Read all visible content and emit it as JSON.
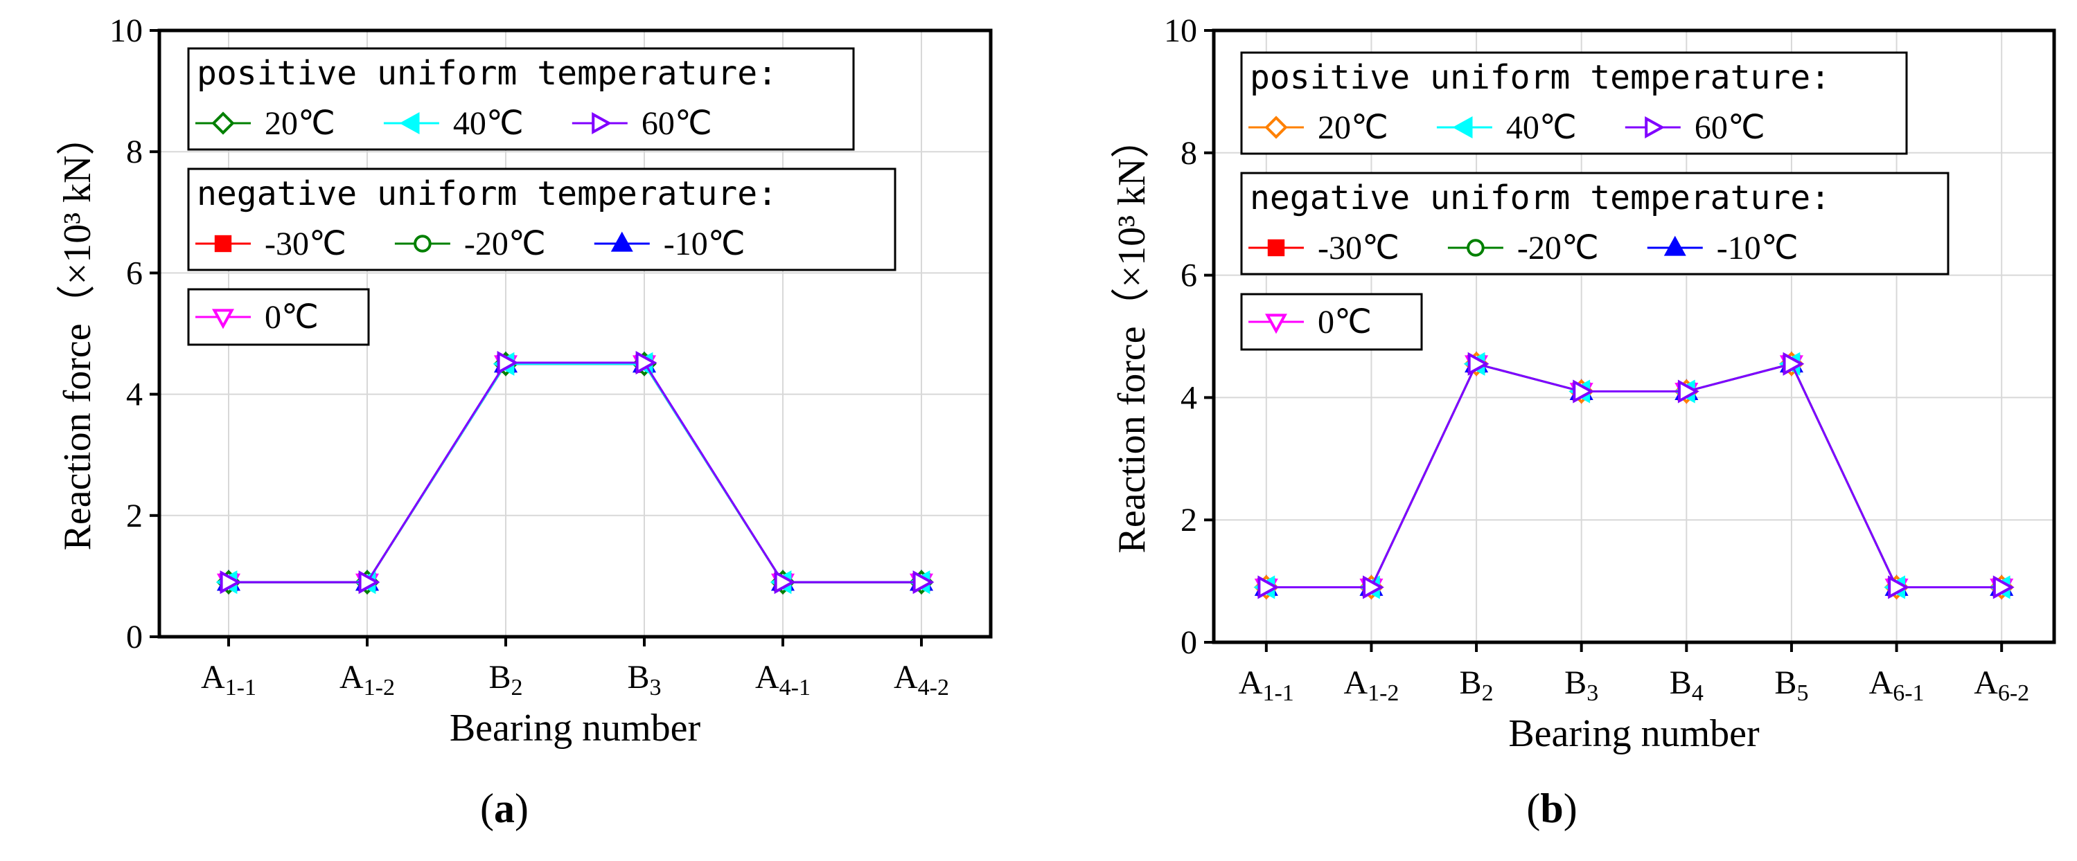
{
  "chart_data": [
    {
      "type": "line",
      "panel": "(a)",
      "caption_open": "(",
      "caption_letter": "a",
      "caption_close": ")",
      "xlabel": "Bearing number",
      "ylabel": "Reaction force（×10³ kN）",
      "ylim": [
        0,
        10
      ],
      "yticks": [
        0,
        2,
        4,
        6,
        8,
        10
      ],
      "grid": true,
      "categories": [
        {
          "main": "A",
          "sub": "1-1"
        },
        {
          "main": "A",
          "sub": "1-2"
        },
        {
          "main": "B",
          "sub": "2"
        },
        {
          "main": "B",
          "sub": "3"
        },
        {
          "main": "A",
          "sub": "4-1"
        },
        {
          "main": "A",
          "sub": "4-2"
        }
      ],
      "series": [
        {
          "name": "-30℃",
          "group": "negative",
          "color": "#ff0000",
          "marker": "square-filled",
          "values": [
            0.9,
            0.9,
            4.5,
            4.5,
            0.9,
            0.9
          ]
        },
        {
          "name": "-20℃",
          "group": "negative",
          "color": "#008000",
          "marker": "circle-open",
          "values": [
            0.9,
            0.9,
            4.5,
            4.5,
            0.9,
            0.9
          ]
        },
        {
          "name": "-10℃",
          "group": "negative",
          "color": "#0000ff",
          "marker": "triangle-up-filled",
          "values": [
            0.9,
            0.9,
            4.5,
            4.5,
            0.9,
            0.9
          ]
        },
        {
          "name": "0℃",
          "group": "zero",
          "color": "#ff00ff",
          "marker": "triangle-down-open",
          "values": [
            0.9,
            0.9,
            4.5,
            4.5,
            0.9,
            0.9
          ]
        },
        {
          "name": "20℃",
          "group": "positive",
          "color": "#008000",
          "marker": "diamond-open",
          "values": [
            0.9,
            0.9,
            4.5,
            4.5,
            0.9,
            0.9
          ]
        },
        {
          "name": "40℃",
          "group": "positive",
          "color": "#00ffff",
          "marker": "triangle-left-filled",
          "values": [
            0.9,
            0.9,
            4.5,
            4.5,
            0.9,
            0.9
          ]
        },
        {
          "name": "60℃",
          "group": "positive",
          "color": "#8000ff",
          "marker": "triangle-right-open",
          "values": [
            0.9,
            0.9,
            4.52,
            4.52,
            0.9,
            0.9
          ]
        }
      ],
      "legend": {
        "positive_title": "positive uniform temperature:",
        "negative_title": "negative uniform temperature:",
        "positive": [
          "20℃",
          "40℃",
          "60℃"
        ],
        "negative": [
          "-30℃",
          "-20℃",
          "-10℃"
        ],
        "zero": [
          "0℃"
        ],
        "placement": "top-left"
      }
    },
    {
      "type": "line",
      "panel": "(b)",
      "caption_open": "(",
      "caption_letter": "b",
      "caption_close": ")",
      "xlabel": "Bearing number",
      "ylabel": "Reaction force（×10³ kN）",
      "ylim": [
        0,
        10
      ],
      "yticks": [
        0,
        2,
        4,
        6,
        8,
        10
      ],
      "grid": true,
      "categories": [
        {
          "main": "A",
          "sub": "1-1"
        },
        {
          "main": "A",
          "sub": "1-2"
        },
        {
          "main": "B",
          "sub": "2"
        },
        {
          "main": "B",
          "sub": "3"
        },
        {
          "main": "B",
          "sub": "4"
        },
        {
          "main": "B",
          "sub": "5"
        },
        {
          "main": "A",
          "sub": "6-1"
        },
        {
          "main": "A",
          "sub": "6-2"
        }
      ],
      "series": [
        {
          "name": "-30℃",
          "group": "negative",
          "color": "#ff0000",
          "marker": "square-filled",
          "values": [
            0.9,
            0.9,
            4.55,
            4.1,
            4.1,
            4.55,
            0.9,
            0.9
          ]
        },
        {
          "name": "-20℃",
          "group": "negative",
          "color": "#008000",
          "marker": "circle-open",
          "values": [
            0.9,
            0.9,
            4.55,
            4.1,
            4.1,
            4.55,
            0.9,
            0.9
          ]
        },
        {
          "name": "-10℃",
          "group": "negative",
          "color": "#0000ff",
          "marker": "triangle-up-filled",
          "values": [
            0.9,
            0.9,
            4.55,
            4.1,
            4.1,
            4.55,
            0.9,
            0.9
          ]
        },
        {
          "name": "0℃",
          "group": "zero",
          "color": "#ff00ff",
          "marker": "triangle-down-open",
          "values": [
            0.9,
            0.9,
            4.55,
            4.1,
            4.1,
            4.55,
            0.9,
            0.9
          ]
        },
        {
          "name": "20℃",
          "group": "positive",
          "color": "#ff8000",
          "marker": "diamond-open",
          "values": [
            0.9,
            0.9,
            4.55,
            4.1,
            4.1,
            4.55,
            0.9,
            0.9
          ]
        },
        {
          "name": "40℃",
          "group": "positive",
          "color": "#00ffff",
          "marker": "triangle-left-filled",
          "values": [
            0.9,
            0.9,
            4.55,
            4.1,
            4.1,
            4.55,
            0.9,
            0.9
          ]
        },
        {
          "name": "60℃",
          "group": "positive",
          "color": "#8000ff",
          "marker": "triangle-right-open",
          "values": [
            0.9,
            0.9,
            4.55,
            4.1,
            4.1,
            4.55,
            0.9,
            0.9
          ]
        }
      ],
      "legend": {
        "positive_title": "positive uniform temperature:",
        "negative_title": "negative uniform temperature:",
        "positive": [
          "20℃",
          "40℃",
          "60℃"
        ],
        "negative": [
          "-30℃",
          "-20℃",
          "-10℃"
        ],
        "zero": [
          "0℃"
        ],
        "placement": "top-left"
      }
    }
  ]
}
